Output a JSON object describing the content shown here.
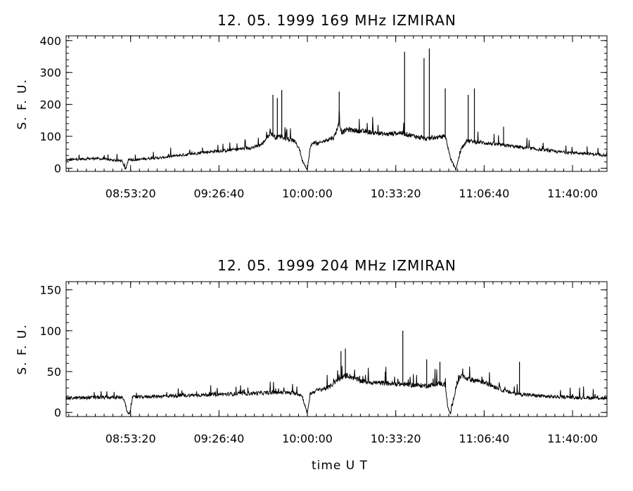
{
  "footer_label": "time   U T",
  "chart_data": [
    {
      "type": "line",
      "title": "12. 05. 1999    169 MHz    IZMIRAN",
      "ylabel": "S. F. U.",
      "xlabel": "",
      "xlim": [
        "08:29:00",
        "11:53:00"
      ],
      "ylim": [
        -10,
        415
      ],
      "xticks": [
        "08:53:20",
        "09:26:40",
        "10:00:00",
        "10:33:20",
        "11:06:40",
        "11:40:00"
      ],
      "yticks": [
        0,
        100,
        200,
        300,
        400
      ],
      "series": [
        {
          "x": [
            "08:29:00",
            "08:35:00",
            "08:40:00",
            "08:50:00",
            "08:51:30",
            "08:52:30",
            "08:55:00",
            "09:00:00",
            "09:05:00",
            "09:10:00",
            "09:15:00",
            "09:20:00",
            "09:25:00",
            "09:30:00",
            "09:35:00",
            "09:40:00",
            "09:43:00",
            "09:46:00",
            "09:48:00",
            "09:50:00",
            "09:52:00",
            "09:55:00",
            "09:57:00",
            "09:58:00",
            "10:00:00",
            "10:01:00",
            "10:02:00",
            "10:04:00",
            "10:08:00",
            "10:10:00",
            "10:12:00",
            "10:13:00",
            "10:15:00",
            "10:20:00",
            "10:25:00",
            "10:30:00",
            "10:35:00",
            "10:40:00",
            "10:45:00",
            "10:48:00",
            "10:50:00",
            "10:52:00",
            "10:54:00",
            "10:56:00",
            "10:58:00",
            "11:00:00",
            "11:05:00",
            "11:10:00",
            "11:15:00",
            "11:20:00",
            "11:25:00",
            "11:30:00",
            "11:35:00",
            "11:40:00",
            "11:45:00",
            "11:53:00"
          ],
          "y": [
            25,
            28,
            30,
            22,
            -5,
            28,
            25,
            30,
            32,
            38,
            42,
            48,
            52,
            55,
            60,
            65,
            75,
            110,
            95,
            100,
            90,
            85,
            60,
            25,
            -5,
            60,
            80,
            75,
            90,
            95,
            140,
            110,
            120,
            115,
            110,
            105,
            110,
            100,
            90,
            95,
            95,
            100,
            30,
            -5,
            60,
            85,
            80,
            75,
            70,
            65,
            60,
            55,
            50,
            48,
            45,
            40
          ],
          "spikes": [
            [
              "09:47:00",
              230
            ],
            [
              "09:48:40",
              220
            ],
            [
              "09:50:20",
              245
            ],
            [
              "10:12:00",
              240
            ],
            [
              "10:36:40",
              365
            ],
            [
              "10:44:00",
              345
            ],
            [
              "10:46:00",
              375
            ],
            [
              "10:52:00",
              250
            ],
            [
              "11:00:40",
              230
            ],
            [
              "11:03:00",
              250
            ],
            [
              "11:14:00",
              130
            ]
          ]
        }
      ]
    },
    {
      "type": "line",
      "title": "12. 05. 1999    204 MHz    IZMIRAN",
      "ylabel": "S. F. U.",
      "xlabel": "time   U T",
      "xlim": [
        "08:29:00",
        "11:53:00"
      ],
      "ylim": [
        -5,
        160
      ],
      "xticks": [
        "08:53:20",
        "09:26:40",
        "10:00:00",
        "10:33:20",
        "11:06:40",
        "11:40:00"
      ],
      "yticks": [
        0,
        50,
        100,
        150
      ],
      "series": [
        {
          "x": [
            "08:29:00",
            "08:40:00",
            "08:50:00",
            "08:51:00",
            "08:52:00",
            "08:53:00",
            "08:54:00",
            "09:00:00",
            "09:10:00",
            "09:20:00",
            "09:30:00",
            "09:40:00",
            "09:50:00",
            "09:56:00",
            "09:58:00",
            "10:00:00",
            "10:01:00",
            "10:03:00",
            "10:08:00",
            "10:12:00",
            "10:15:00",
            "10:20:00",
            "10:25:00",
            "10:30:00",
            "10:35:00",
            "10:40:00",
            "10:45:00",
            "10:50:00",
            "10:52:00",
            "10:53:00",
            "10:54:00",
            "10:56:00",
            "10:58:00",
            "11:00:00",
            "11:05:00",
            "11:10:00",
            "11:15:00",
            "11:20:00",
            "11:30:00",
            "11:40:00",
            "11:53:00"
          ],
          "y": [
            17,
            18,
            18,
            15,
            0,
            -2,
            18,
            19,
            20,
            21,
            22,
            23,
            24,
            23,
            20,
            -2,
            22,
            26,
            30,
            40,
            45,
            38,
            36,
            35,
            34,
            33,
            32,
            35,
            33,
            5,
            -2,
            30,
            45,
            40,
            38,
            32,
            25,
            22,
            19,
            18,
            17
          ],
          "spikes": [
            [
              "10:12:40",
              75
            ],
            [
              "10:14:20",
              78
            ],
            [
              "10:36:00",
              100
            ],
            [
              "10:45:00",
              65
            ],
            [
              "10:50:00",
              62
            ],
            [
              "11:20:00",
              62
            ]
          ]
        }
      ]
    }
  ]
}
